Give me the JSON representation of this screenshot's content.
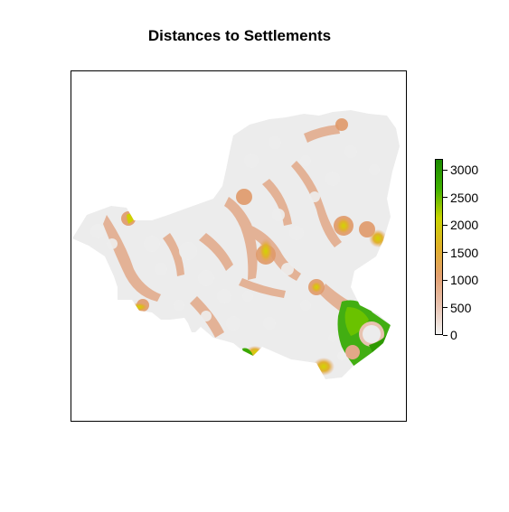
{
  "title": "Distances to Settlements",
  "legend": {
    "ticks": [
      "0",
      "500",
      "1000",
      "1500",
      "2000",
      "2500",
      "3000"
    ],
    "min": 0,
    "max": 3200,
    "colors": [
      "#f2f2f2",
      "#e8c2b0",
      "#e3a070",
      "#e0b028",
      "#c8d400",
      "#3fb000",
      "#1a8a00"
    ]
  }
}
